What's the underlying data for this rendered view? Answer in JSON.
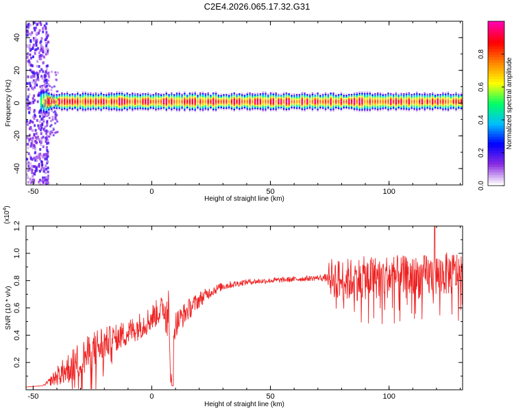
{
  "title": "C2E4.2026.065.17.32.G31",
  "colors": {
    "series": "#ee2222",
    "axis": "#000000"
  },
  "chart_data": [
    {
      "type": "heatmap",
      "xlabel": "Height of straight line (km)",
      "ylabel": "Frequency (Hz)",
      "xlim": [
        -53,
        131
      ],
      "ylim": [
        -50,
        50
      ],
      "xticks": [
        -50,
        0,
        50,
        100
      ],
      "yticks": [
        -40,
        -20,
        0,
        20,
        40
      ],
      "ridge_frequency": 1,
      "colorbar": {
        "label": "Normalized spectral amplitude",
        "range": [
          0,
          1
        ],
        "ticks": [
          "0.0",
          "0.2",
          "0.4",
          "0.6",
          "0.8"
        ],
        "colors": [
          "#ffffff",
          "#8a2be2",
          "#0000ff",
          "#00bfff",
          "#00ff66",
          "#ffff00",
          "#ff8800",
          "#ff0000",
          "#ff00aa"
        ]
      }
    },
    {
      "type": "line",
      "xlabel": "Height of straight line (km)",
      "ylabel": "SNR (10 * v/v)",
      "scale_label": "(x10",
      "scale_exp": "4",
      "scale_close": ")",
      "xlim": [
        -53,
        131
      ],
      "ylim": [
        0,
        1.2
      ],
      "xticks": [
        -50,
        0,
        50,
        100
      ],
      "yticks": [
        "0.2",
        "0.4",
        "0.6",
        "0.8",
        "1.0",
        "1.2"
      ],
      "ytick_values": [
        0.2,
        0.4,
        0.6,
        0.8,
        1.0,
        1.2
      ],
      "series": [
        {
          "x": [
            -53,
            -46,
            -43,
            -40,
            -35,
            -30,
            -25,
            -22,
            -20,
            -15,
            -10,
            -6,
            -2,
            2,
            5,
            7,
            8,
            9,
            10,
            15,
            20,
            25,
            30,
            40,
            50,
            60,
            70,
            74,
            75,
            80,
            90,
            100,
            110,
            120,
            125,
            131
          ],
          "y": [
            0.02,
            0.03,
            0.06,
            0.1,
            0.16,
            0.22,
            0.28,
            0.32,
            0.34,
            0.38,
            0.42,
            0.46,
            0.5,
            0.56,
            0.6,
            0.62,
            0.03,
            0.4,
            0.48,
            0.58,
            0.66,
            0.72,
            0.76,
            0.79,
            0.8,
            0.81,
            0.82,
            0.82,
            0.83,
            0.8,
            0.82,
            0.83,
            0.82,
            0.84,
            0.85,
            0.86
          ],
          "noise": [
            0,
            0,
            0.03,
            0.07,
            0.12,
            0.14,
            0.14,
            0.16,
            0.12,
            0.1,
            0.1,
            0.1,
            0.1,
            0.1,
            0.1,
            0.14,
            0,
            0.06,
            0.1,
            0.08,
            0.06,
            0.04,
            0.03,
            0.02,
            0.02,
            0.02,
            0.02,
            0.03,
            0.14,
            0.16,
            0.16,
            0.16,
            0.16,
            0.16,
            0.16,
            0.16
          ]
        }
      ]
    }
  ]
}
